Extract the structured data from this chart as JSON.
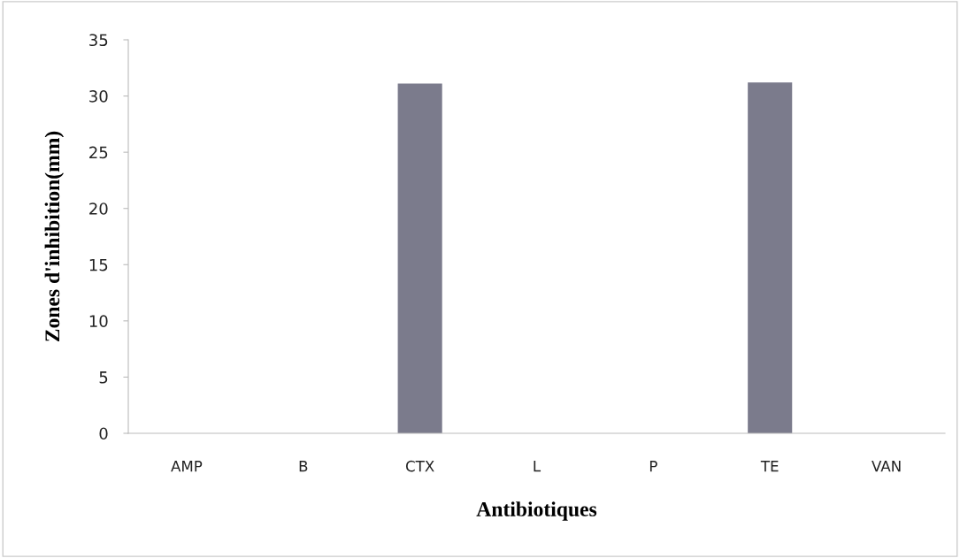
{
  "chart_data": {
    "type": "bar",
    "xlabel": "Antibiotiques",
    "ylabel": "Zones d'inhibition(mm)",
    "categories": [
      "AMP",
      "B",
      "CTX",
      "L",
      "P",
      "TE",
      "VAN"
    ],
    "values": [
      0,
      0,
      31.1,
      0,
      0,
      31.2,
      0
    ],
    "color": "#7b7b8c",
    "ylim": [
      0,
      35
    ],
    "yticks": [
      0,
      5,
      10,
      15,
      20,
      25,
      30,
      35
    ],
    "grid": false
  }
}
